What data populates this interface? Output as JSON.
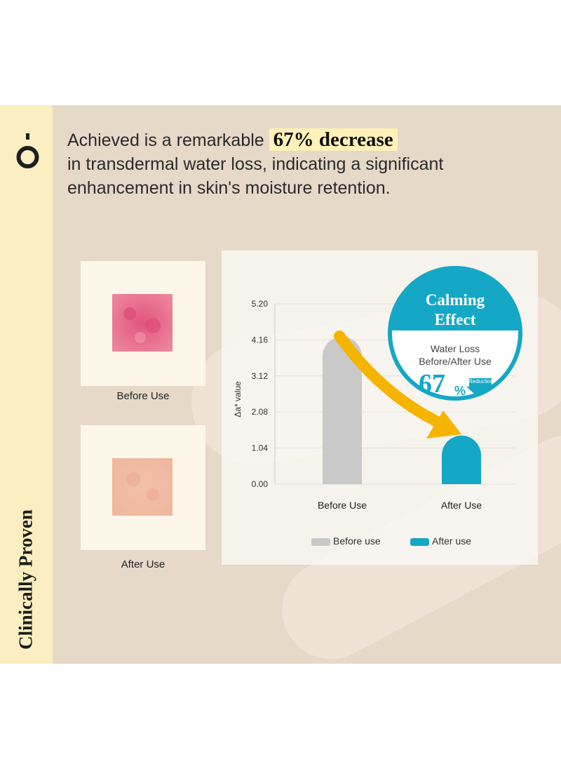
{
  "brand": {
    "logo_icon": "o-with-dot-logo-icon",
    "vertical_label": "Clinically Proven"
  },
  "headline": {
    "prefix": "Achieved is a remarkable ",
    "highlight": "67% decrease",
    "line2": "in transdermal water loss, indicating a significant",
    "line3": "enhancement in skin's moisture retention."
  },
  "photos": {
    "before_caption": "Before Use",
    "after_caption": "After Use"
  },
  "badge": {
    "title_line1": "Calming",
    "title_line2": "Effect",
    "sub_line1": "Water Loss",
    "sub_line2": "Before/After Use",
    "percent": "67",
    "percent_sign": "%",
    "arrow_label": "Reduction",
    "color": "#14a8c6"
  },
  "chart_data": {
    "type": "bar",
    "categories": [
      "Before Use",
      "After Use"
    ],
    "series": [
      {
        "name": "Before use",
        "values": [
          4.25,
          null
        ],
        "color": "#c9c9c9"
      },
      {
        "name": "After use",
        "values": [
          null,
          1.4
        ],
        "color": "#14a8c6"
      }
    ],
    "ylabel": "Δa* value",
    "xlabel": "",
    "ylim": [
      0,
      5.2
    ],
    "yticks": [
      "0.00",
      "1.04",
      "2.08",
      "3.12",
      "4.16",
      "5.20"
    ],
    "grid": true,
    "legend": "bottom",
    "annotation": "curved arrow from Before Use to After Use",
    "arrow_color": "#f5b400"
  }
}
